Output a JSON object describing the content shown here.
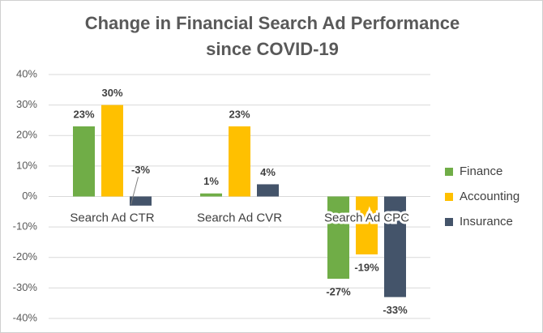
{
  "chart_data": {
    "type": "bar",
    "title": "Change in Financial Search Ad Performance since COVID-19",
    "categories": [
      "Search Ad CTR",
      "Search Ad CVR",
      "Search Ad CPC"
    ],
    "series": [
      {
        "name": "Finance",
        "color": "#70ad47",
        "values": [
          23,
          1,
          -27
        ],
        "value_labels": [
          "23%",
          "1%",
          "-27%"
        ]
      },
      {
        "name": "Accounting",
        "color": "#ffc000",
        "values": [
          30,
          23,
          -19
        ],
        "value_labels": [
          "30%",
          "23%",
          "-19%"
        ]
      },
      {
        "name": "Insurance",
        "color": "#44546a",
        "values": [
          -3,
          4,
          -33
        ],
        "value_labels": [
          "-3%",
          "4%",
          "-33%"
        ]
      }
    ],
    "ylim": [
      -40,
      40
    ],
    "yticks": [
      {
        "value": -40,
        "label": "-40%"
      },
      {
        "value": -30,
        "label": "-30%"
      },
      {
        "value": -20,
        "label": "-20%"
      },
      {
        "value": -10,
        "label": "-10%"
      },
      {
        "value": 0,
        "label": "0%"
      },
      {
        "value": 10,
        "label": "10%"
      },
      {
        "value": 20,
        "label": "20%"
      },
      {
        "value": 30,
        "label": "30%"
      },
      {
        "value": 40,
        "label": "40%"
      }
    ],
    "grid": true,
    "legend": "right"
  }
}
